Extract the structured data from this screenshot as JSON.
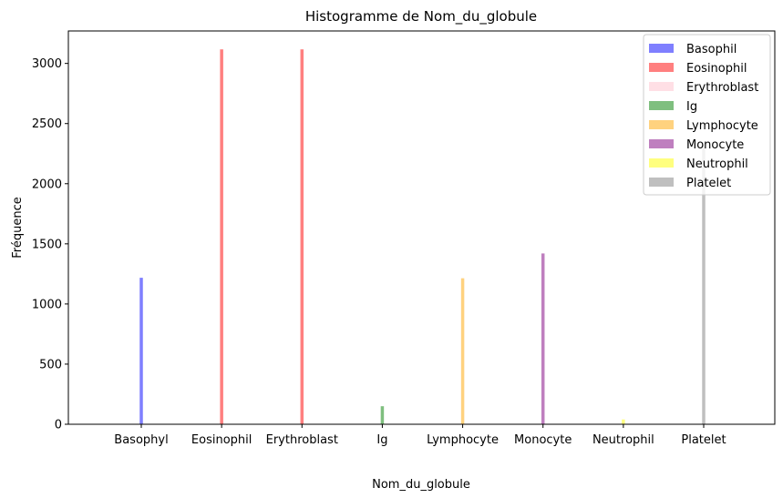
{
  "chart_data": {
    "type": "bar",
    "title": "Histogramme de Nom_du_globule",
    "xlabel": "Nom_du_globule",
    "ylabel": "Fréquence",
    "categories": [
      "Basophyl",
      "Eosinophil",
      "Erythroblast",
      "Ig",
      "Lymphocyte",
      "Monocyte",
      "Neutrophil",
      "Platelet"
    ],
    "ylim": [
      0,
      3270
    ],
    "yticks": [
      0,
      500,
      1000,
      1500,
      2000,
      2500,
      3000
    ],
    "ytick_labels": [
      "0",
      "500",
      "1000",
      "1500",
      "2000",
      "2500",
      "3000"
    ],
    "series": [
      {
        "name": "Basophil",
        "category": "Basophyl",
        "value": 1218,
        "color": "#7f7fff"
      },
      {
        "name": "Eosinophil",
        "category": "Eosinophil",
        "value": 3117,
        "color": "#ff7f7f"
      },
      {
        "name": "Erythroblast",
        "category": "Erythroblast",
        "value": 3117,
        "color": "#ff7f7f"
      },
      {
        "name": "Ig",
        "category": "Ig",
        "value": 150,
        "color": "#7fbf7f"
      },
      {
        "name": "Lymphocyte",
        "category": "Lymphocyte",
        "value": 1214,
        "color": "#ffd27f"
      },
      {
        "name": "Monocyte",
        "category": "Monocyte",
        "value": 1420,
        "color": "#bf7fbf"
      },
      {
        "name": "Neutrophil",
        "category": "Neutrophil",
        "value": 40,
        "color": "#ffff7f"
      },
      {
        "name": "Platelet",
        "category": "Platelet",
        "value": 2348,
        "color": "#bfbfbf"
      }
    ],
    "legend": {
      "position": "top-right",
      "entries": [
        {
          "label": "Basophil",
          "color": "#7f7fff"
        },
        {
          "label": "Eosinophil",
          "color": "#ff7f7f"
        },
        {
          "label": "Erythroblast",
          "color": "#ffdfe5"
        },
        {
          "label": "Ig",
          "color": "#7fbf7f"
        },
        {
          "label": "Lymphocyte",
          "color": "#ffd27f"
        },
        {
          "label": "Monocyte",
          "color": "#bf7fbf"
        },
        {
          "label": "Neutrophil",
          "color": "#ffff7f"
        },
        {
          "label": "Platelet",
          "color": "#bfbfbf"
        }
      ]
    },
    "grid": false
  }
}
